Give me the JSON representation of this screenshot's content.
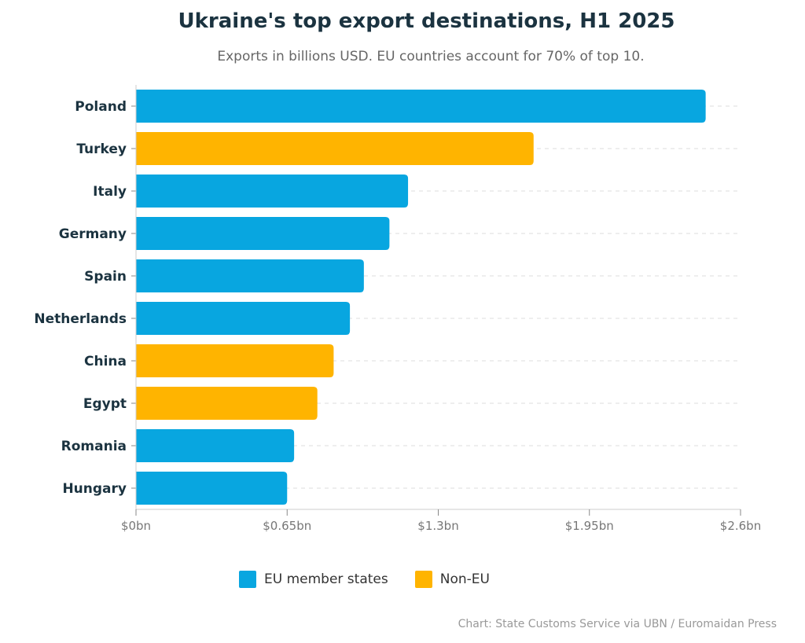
{
  "chart_data": {
    "type": "bar",
    "orientation": "horizontal",
    "title": "Ukraine's top export destinations, H1 2025",
    "subtitle": "Exports in billions USD. EU countries account for 70% of top 10.",
    "categories": [
      "Poland",
      "Turkey",
      "Italy",
      "Germany",
      "Spain",
      "Netherlands",
      "China",
      "Egypt",
      "Romania",
      "Hungary"
    ],
    "values": [
      2.45,
      1.71,
      1.17,
      1.09,
      0.98,
      0.92,
      0.85,
      0.78,
      0.68,
      0.65
    ],
    "groups": [
      "EU",
      "Non-EU",
      "EU",
      "EU",
      "EU",
      "EU",
      "Non-EU",
      "Non-EU",
      "EU",
      "EU"
    ],
    "xlim": [
      0,
      2.6
    ],
    "xticks": [
      0,
      0.65,
      1.3,
      1.95,
      2.6
    ],
    "xtick_labels": [
      "$0bn",
      "$0.65bn",
      "$1.3bn",
      "$1.95bn",
      "$2.6bn"
    ],
    "grid": true,
    "legend_position": "bottom",
    "legend": [
      {
        "key": "EU",
        "label": "EU member states",
        "color": "#08a6e0"
      },
      {
        "key": "Non-EU",
        "label": "Non-EU",
        "color": "#ffb400"
      }
    ],
    "source": "Chart: State Customs Service via UBN / Euromaidan Press"
  }
}
